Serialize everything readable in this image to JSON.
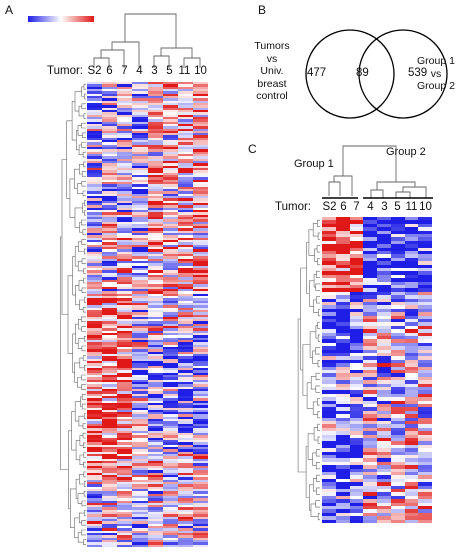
{
  "panels": {
    "a": {
      "letter": "A"
    },
    "b": {
      "letter": "B"
    },
    "c": {
      "letter": "C"
    }
  },
  "colors": {
    "low": "#1f1fe6",
    "mid": "#ffffff",
    "high": "#e01818",
    "tree": "#666666"
  },
  "legend": {
    "labels": [
      "",
      "",
      ""
    ]
  },
  "panel_a": {
    "row_label": "Tumor:",
    "columns": [
      "S2",
      "6",
      "7",
      "4",
      "3",
      "5",
      "11",
      "10"
    ],
    "rows": 200
  },
  "panel_b": {
    "left_label_lines": [
      "Tumors",
      "vs",
      "Univ.",
      "breast",
      "control"
    ],
    "right_label_lines": [
      "Group 1",
      "vs",
      "Group 2"
    ],
    "left_only": "477",
    "overlap": "89",
    "right_only": "539"
  },
  "panel_c": {
    "group1": "Group 1",
    "group2": "Group 2",
    "row_label": "Tumor:",
    "columns": [
      "S2",
      "6",
      "7",
      "4",
      "3",
      "5",
      "11",
      "10"
    ],
    "rows": 90
  }
}
